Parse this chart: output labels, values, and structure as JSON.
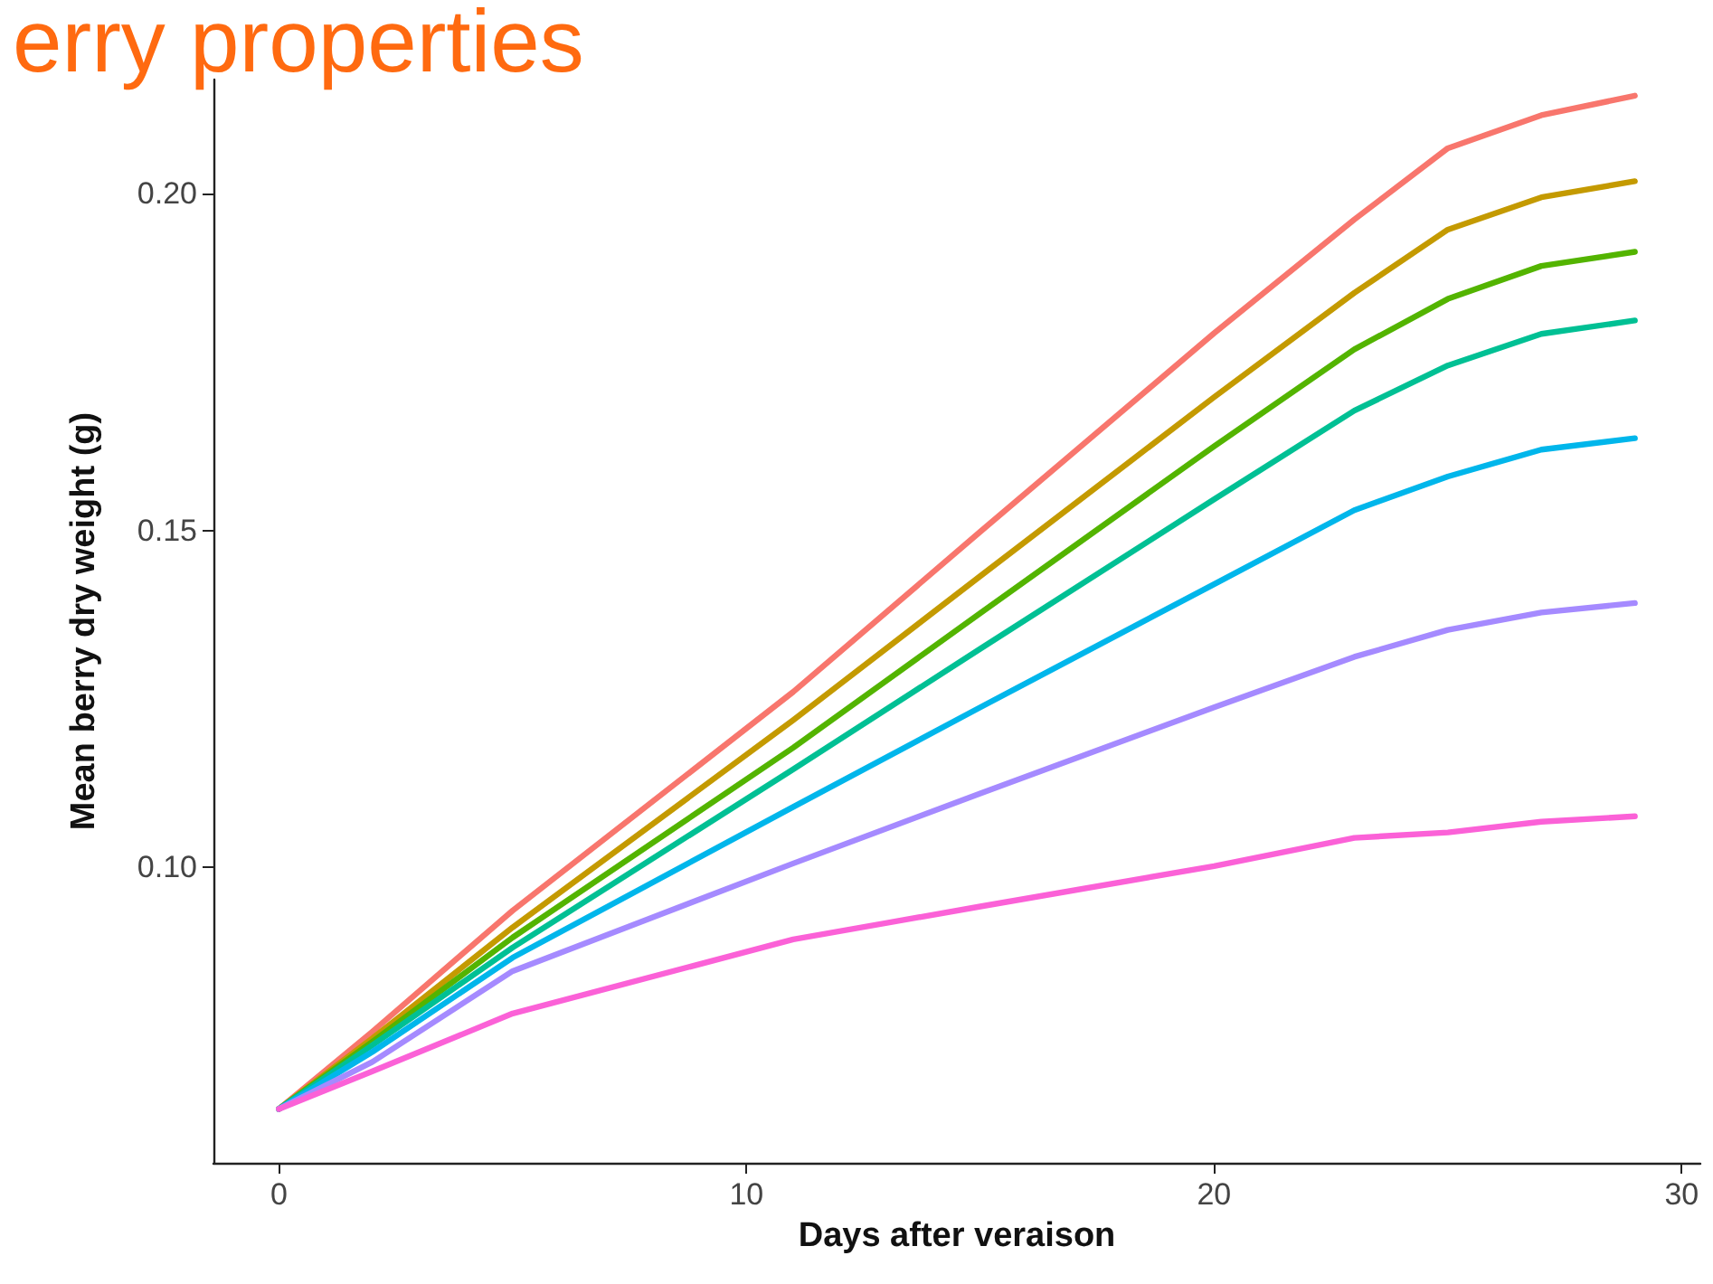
{
  "chart_data": {
    "type": "line",
    "title": "erry properties",
    "xlabel": "Days after veraison",
    "ylabel": "Mean berry dry weight (g)",
    "x": [
      0,
      2,
      5,
      11,
      15,
      20,
      23,
      25,
      27,
      29
    ],
    "series": [
      {
        "color": "#f8766d",
        "values": [
          0.064,
          0.0755,
          0.0935,
          0.126,
          0.1498,
          0.1793,
          0.1962,
          0.2068,
          0.2117,
          0.2146
        ]
      },
      {
        "color": "#c49a00",
        "values": [
          0.064,
          0.0745,
          0.091,
          0.1218,
          0.1432,
          0.1698,
          0.1853,
          0.1947,
          0.1995,
          0.2019
        ]
      },
      {
        "color": "#53b400",
        "values": [
          0.064,
          0.074,
          0.0895,
          0.1177,
          0.1377,
          0.1625,
          0.1769,
          0.1844,
          0.1893,
          0.1914
        ]
      },
      {
        "color": "#00c094",
        "values": [
          0.064,
          0.0735,
          0.088,
          0.1145,
          0.1324,
          0.1546,
          0.1678,
          0.1745,
          0.1792,
          0.1812
        ]
      },
      {
        "color": "#00b6eb",
        "values": [
          0.064,
          0.0725,
          0.0865,
          0.1089,
          0.1237,
          0.142,
          0.153,
          0.158,
          0.162,
          0.1637
        ]
      },
      {
        "color": "#a58aff",
        "values": [
          0.064,
          0.071,
          0.0845,
          0.1005,
          0.1109,
          0.1237,
          0.1312,
          0.1352,
          0.1378,
          0.1392
        ]
      },
      {
        "color": "#fb61d7",
        "values": [
          0.064,
          0.0696,
          0.0782,
          0.0892,
          0.0941,
          0.1001,
          0.1043,
          0.1051,
          0.1067,
          0.1075
        ]
      }
    ],
    "xlim": [
      -1.4,
      30.4
    ],
    "xticks": [
      0,
      10,
      20,
      30
    ],
    "ylim": [
      0.056,
      0.217
    ],
    "yticks": [
      {
        "value": 0.1,
        "label": "0.10"
      },
      {
        "value": 0.15,
        "label": "0.15"
      },
      {
        "value": 0.2,
        "label": "0.20"
      }
    ],
    "grid": false,
    "marker": "none",
    "line_style": "solid"
  }
}
